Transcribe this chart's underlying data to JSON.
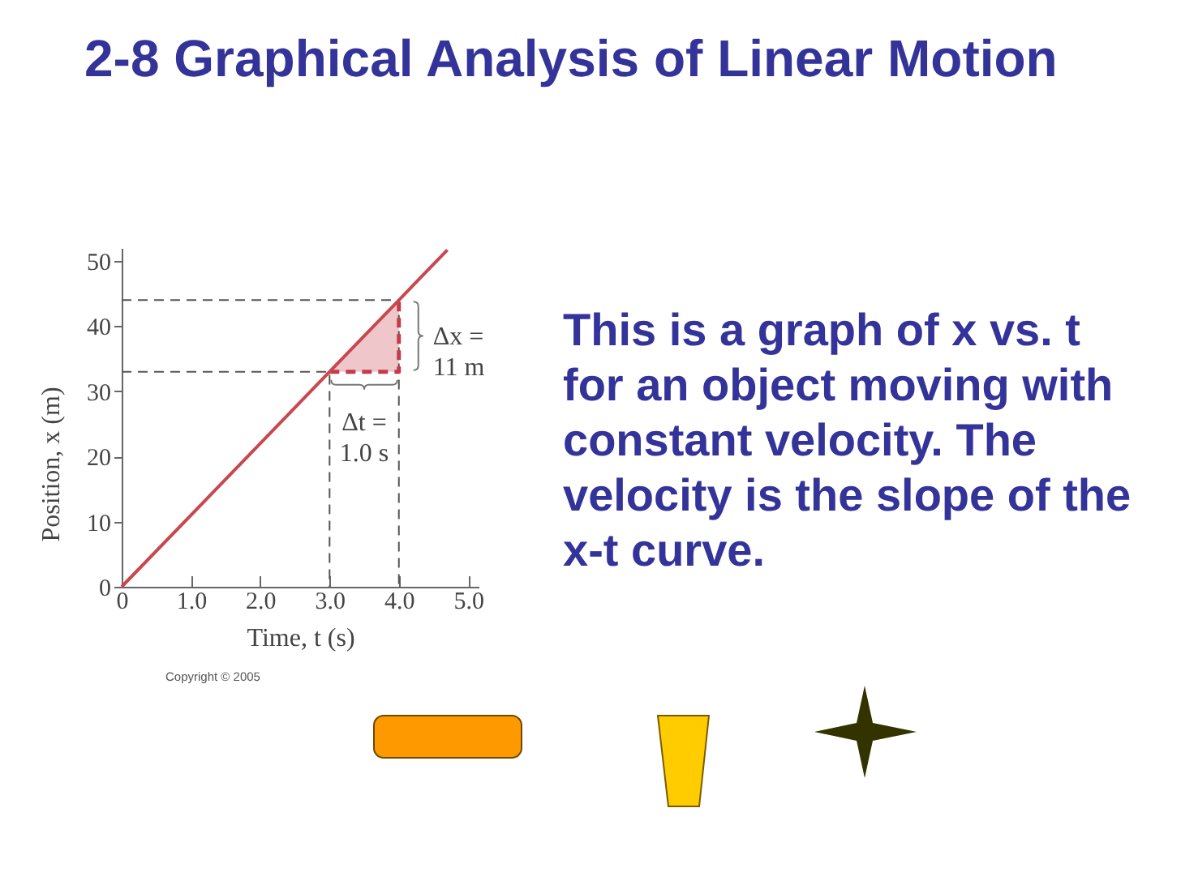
{
  "chart_data": {
    "type": "line",
    "title": "2-8 Graphical Analysis of Linear Motion",
    "xlabel": "Time, t (s)",
    "ylabel": "Position, x (m)",
    "xlim": [
      0,
      5.15
    ],
    "ylim": [
      0,
      52
    ],
    "xticks": [
      0,
      {
        "value": 1,
        "label": "1.0"
      },
      {
        "value": 2,
        "label": "2.0"
      },
      {
        "value": 3,
        "label": "3.0"
      },
      {
        "value": 4,
        "label": "4.0"
      },
      {
        "value": 5,
        "label": "5.0"
      }
    ],
    "yticks": [
      0,
      10,
      20,
      30,
      40,
      50
    ],
    "grid": false,
    "series": [
      {
        "color": "#555555",
        "line_style": "dashed",
        "x": [
          0,
          3,
          3
        ],
        "values": [
          33,
          33,
          0
        ]
      },
      {
        "color": "#555555",
        "line_style": "dashed",
        "x": [
          0,
          4,
          4
        ],
        "values": [
          44,
          44,
          0
        ]
      },
      {
        "color": "#c23d48",
        "line_style": "dashed",
        "x": [
          3,
          4,
          4
        ],
        "values": [
          33,
          33,
          44
        ]
      },
      {
        "color": "#c9474f",
        "line_style": "solid",
        "x": [
          0,
          3,
          4,
          4.7
        ],
        "values": [
          0,
          33,
          44,
          51.7
        ],
        "lower": [
          null,
          33,
          33,
          null
        ],
        "upper": [
          null,
          33,
          44,
          null
        ]
      }
    ],
    "annotations": [
      {
        "text": "Δx =\n11 m",
        "x": 4,
        "y": 38.5
      },
      {
        "text": "Δt =\n1.0 s",
        "x": 3.5,
        "y": 33
      },
      "This is a graph of x vs. t for an object moving with constant velocity. The velocity is the slope of the x-t curve.",
      "Copyright © 2005"
    ]
  }
}
